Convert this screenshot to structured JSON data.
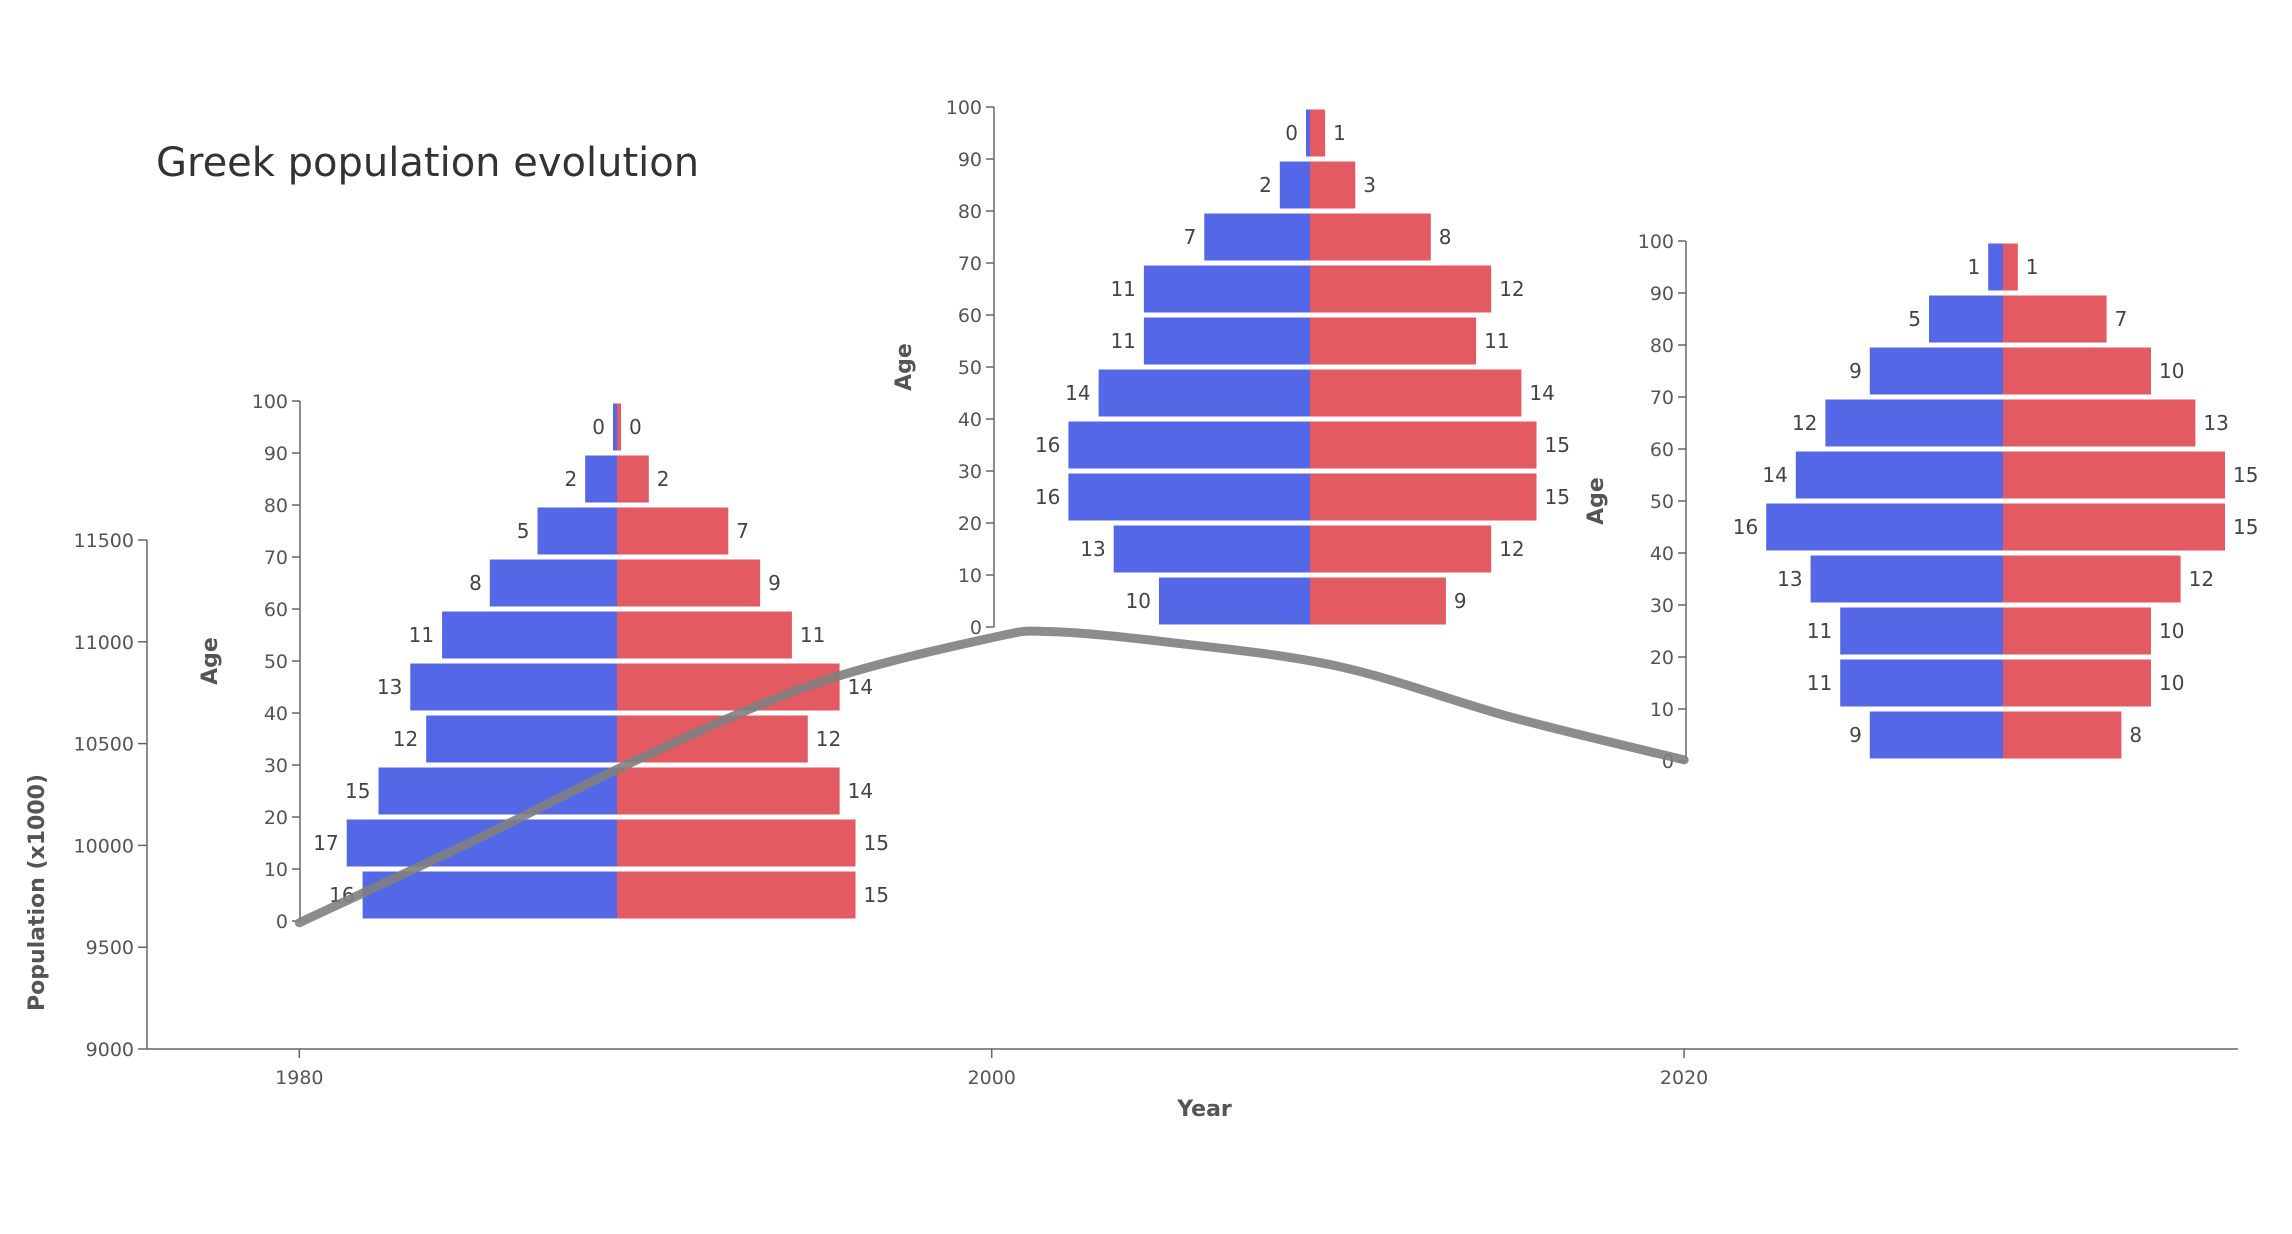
{
  "title": "Greek population evolution",
  "colors": {
    "male": "#5468E7",
    "female": "#E24C55",
    "trend": "#808080",
    "axis": "#666666",
    "text": "#555555"
  },
  "chart_data": [
    {
      "type": "line",
      "title": "Greek population evolution",
      "xlabel": "Year",
      "ylabel": "Population (x1000)",
      "x_ticks": [
        "1980",
        "2000",
        "2020"
      ],
      "y_ticks": [
        "9000",
        "9500",
        "10000",
        "10500",
        "11000",
        "11500"
      ],
      "xlim": [
        1975.6,
        2036
      ],
      "ylim": [
        9000,
        11500
      ],
      "series": [
        {
          "x": [
            1980,
            1985,
            1990,
            1995,
            2000,
            2001.7,
            2005,
            2010,
            2015,
            2020
          ],
          "y": [
            9620,
            10020,
            10440,
            10800,
            11020,
            11050,
            11000,
            10880,
            10630,
            10420
          ]
        }
      ]
    },
    {
      "type": "bar",
      "year": 1980,
      "ylabel": "Age",
      "age_ticks": [
        "0",
        "10",
        "20",
        "30",
        "40",
        "50",
        "60",
        "70",
        "80",
        "90",
        "100"
      ],
      "series": [
        {
          "values": [
            16,
            17,
            15,
            12,
            13,
            11,
            8,
            5,
            2,
            0
          ]
        },
        {
          "values": [
            15,
            15,
            14,
            12,
            14,
            11,
            9,
            7,
            2,
            0
          ]
        }
      ]
    },
    {
      "type": "bar",
      "year": 2000,
      "ylabel": "Age",
      "age_ticks": [
        "0",
        "10",
        "20",
        "30",
        "40",
        "50",
        "60",
        "70",
        "80",
        "90",
        "100"
      ],
      "series": [
        {
          "values": [
            10,
            13,
            16,
            16,
            14,
            11,
            11,
            7,
            2,
            0
          ]
        },
        {
          "values": [
            9,
            12,
            15,
            15,
            14,
            11,
            12,
            8,
            3,
            1
          ]
        }
      ]
    },
    {
      "type": "bar",
      "year": 2020,
      "ylabel": "Age",
      "age_ticks": [
        "0",
        "10",
        "20",
        "30",
        "40",
        "50",
        "60",
        "70",
        "80",
        "90",
        "100"
      ],
      "series": [
        {
          "values": [
            9,
            11,
            11,
            13,
            16,
            14,
            12,
            9,
            5,
            1
          ]
        },
        {
          "values": [
            8,
            10,
            10,
            12,
            15,
            15,
            13,
            10,
            7,
            1
          ]
        }
      ]
    }
  ]
}
